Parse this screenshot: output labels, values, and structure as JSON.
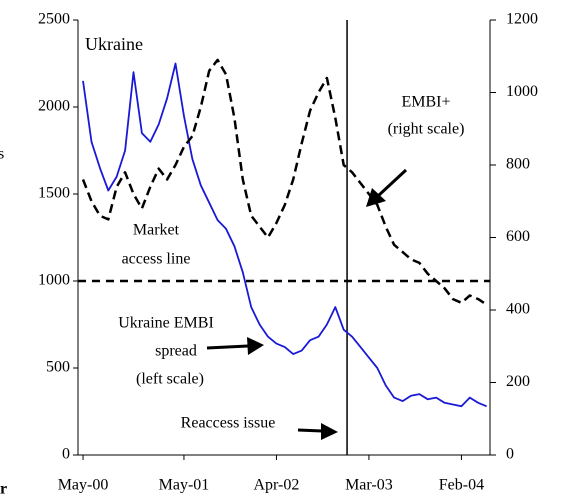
{
  "chart_data": {
    "type": "line",
    "title": "Ukraine",
    "x": [
      0,
      1,
      2,
      3,
      4,
      5,
      6,
      7,
      8,
      9,
      10,
      11,
      12,
      13,
      14,
      15,
      16,
      17,
      18,
      19,
      20,
      21,
      22,
      23,
      24,
      25,
      26,
      27,
      28,
      29,
      30,
      31,
      32,
      33,
      34,
      35,
      36,
      37,
      38,
      39,
      40,
      41,
      42,
      43,
      44,
      45,
      46,
      47,
      48
    ],
    "xlim": [
      -0.6,
      48.4
    ],
    "xticks": [
      {
        "value": 0,
        "label": "May-00"
      },
      {
        "value": 12,
        "label": "May-01"
      },
      {
        "value": 23,
        "label": "Apr-02"
      },
      {
        "value": 34,
        "label": "Mar-03"
      },
      {
        "value": 45,
        "label": "Feb-04"
      }
    ],
    "ylim": [
      0,
      2500
    ],
    "yticks": [
      0,
      500,
      1000,
      1500,
      2000,
      2500
    ],
    "y2lim": [
      0,
      1200
    ],
    "y2ticks": [
      0,
      200,
      400,
      600,
      800,
      1000,
      1200
    ],
    "series": [
      {
        "color": "#1a1ad6",
        "line_style": "solid",
        "axis": "y",
        "values": [
          2150,
          1800,
          1650,
          1520,
          1600,
          1750,
          2200,
          1850,
          1800,
          1900,
          2050,
          2250,
          1950,
          1700,
          1550,
          1450,
          1350,
          1300,
          1200,
          1050,
          850,
          750,
          680,
          640,
          620,
          580,
          600,
          660,
          680,
          750,
          850,
          720,
          680,
          620,
          560,
          500,
          400,
          330,
          310,
          340,
          350,
          320,
          330,
          300,
          290,
          280,
          330,
          300,
          280
        ]
      },
      {
        "color": "#000000",
        "line_style": "dashed",
        "axis": "y2",
        "values": [
          760,
          700,
          660,
          650,
          740,
          780,
          720,
          680,
          740,
          790,
          760,
          800,
          850,
          880,
          960,
          1060,
          1090,
          1050,
          930,
          760,
          660,
          630,
          600,
          640,
          690,
          760,
          860,
          950,
          1000,
          1040,
          930,
          800,
          780,
          750,
          720,
          690,
          630,
          580,
          560,
          540,
          530,
          500,
          480,
          460,
          430,
          420,
          440,
          430,
          415
        ]
      }
    ],
    "reference_line": {
      "axis": "y",
      "value": 1000,
      "line_style": "dashed"
    },
    "event_line": {
      "x": 31.4
    },
    "annotations": [
      "EMBI+",
      "(right scale)",
      "Market",
      "access line",
      "Ukraine EMBI",
      "spread",
      "(left scale)",
      "Reaccess issue"
    ],
    "fragments": [
      "s",
      "r"
    ]
  }
}
